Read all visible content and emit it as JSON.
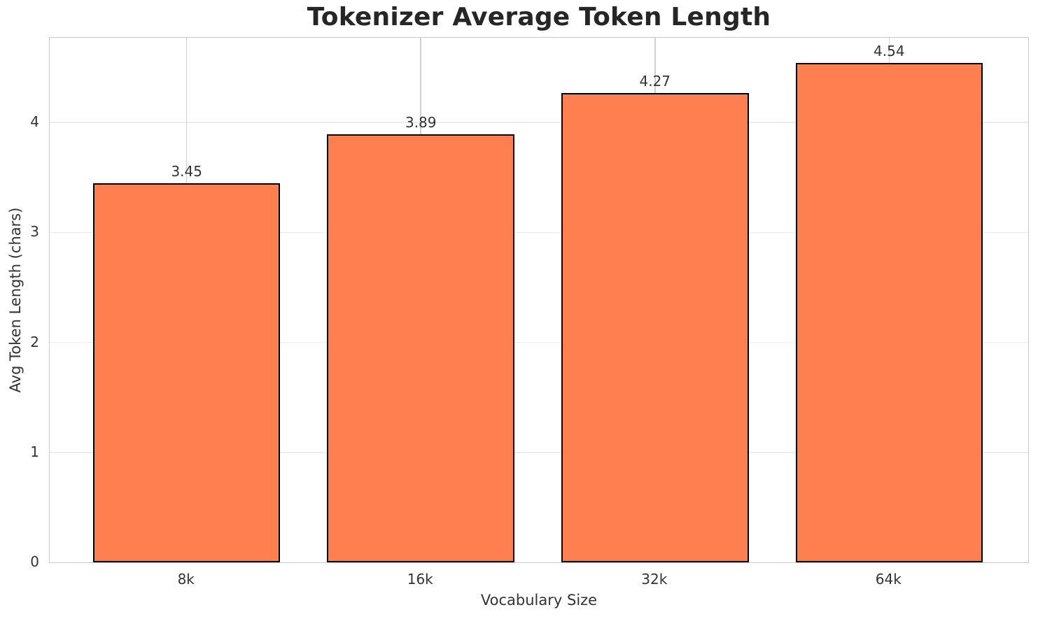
{
  "chart_data": {
    "type": "bar",
    "title": "Tokenizer Average Token Length",
    "xlabel": "Vocabulary Size",
    "ylabel": "Avg Token Length (chars)",
    "categories": [
      "8k",
      "16k",
      "32k",
      "64k"
    ],
    "values": [
      3.45,
      3.89,
      4.27,
      4.54
    ],
    "value_labels": [
      "3.45",
      "3.89",
      "4.27",
      "4.54"
    ],
    "yticks": [
      0,
      1,
      2,
      3,
      4
    ],
    "ylim": [
      0,
      4.77
    ],
    "grid": true,
    "legend_position": "none",
    "bar_color": "#FF7F50",
    "bar_edge_color": "#000000",
    "background_color": "#ffffff"
  }
}
